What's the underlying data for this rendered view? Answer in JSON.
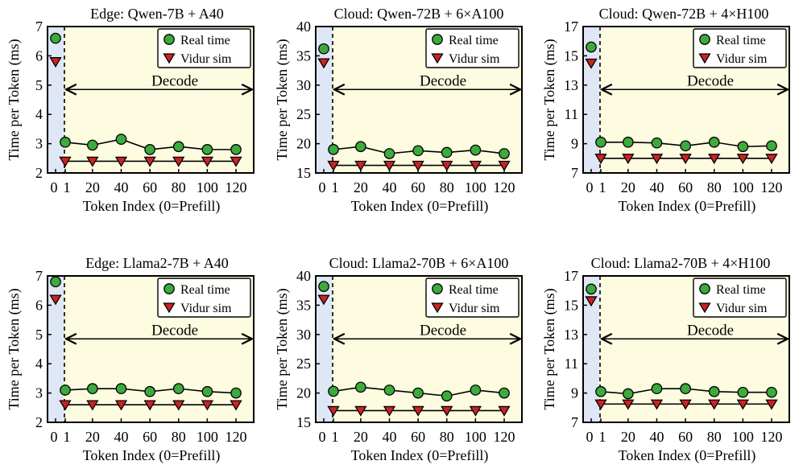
{
  "colors": {
    "plot_bg": "#fdfbe0",
    "prefill_bg": "#dfe6f6",
    "real": "#3caa3c",
    "sim": "#cc2222",
    "line": "#000000"
  },
  "chart_data": [
    {
      "type": "line",
      "title": "Edge: Qwen-7B + A40",
      "xlabel": "Token Index (0=Prefill)",
      "ylabel": "Time per Token (ms)",
      "x_ticks": [
        "0",
        "1",
        "20",
        "40",
        "60",
        "80",
        "100",
        "120"
      ],
      "ylim": [
        2,
        7
      ],
      "y_ticks": [
        2,
        3,
        4,
        5,
        6,
        7
      ],
      "annotation": "Decode",
      "prefill": {
        "real": 6.6,
        "sim": 5.8
      },
      "decode_x": [
        1,
        20,
        40,
        60,
        80,
        100,
        120
      ],
      "series": [
        {
          "name": "Real time",
          "values": [
            3.05,
            2.95,
            3.15,
            2.8,
            2.9,
            2.8,
            2.8
          ]
        },
        {
          "name": "Vidur sim",
          "values": [
            2.4,
            2.4,
            2.4,
            2.4,
            2.4,
            2.4,
            2.4
          ]
        }
      ]
    },
    {
      "type": "line",
      "title": "Cloud: Qwen-72B + 6×A100",
      "xlabel": "Token Index (0=Prefill)",
      "ylabel": "Time per Token (ms)",
      "x_ticks": [
        "0",
        "1",
        "20",
        "40",
        "60",
        "80",
        "100",
        "120"
      ],
      "ylim": [
        15,
        40
      ],
      "y_ticks": [
        15,
        20,
        25,
        30,
        35,
        40
      ],
      "annotation": "Decode",
      "prefill": {
        "real": 36.2,
        "sim": 33.8
      },
      "decode_x": [
        1,
        20,
        40,
        60,
        80,
        100,
        120
      ],
      "series": [
        {
          "name": "Real time",
          "values": [
            19.0,
            19.5,
            18.3,
            18.8,
            18.5,
            18.9,
            18.3
          ]
        },
        {
          "name": "Vidur sim",
          "values": [
            16.3,
            16.3,
            16.3,
            16.3,
            16.3,
            16.3,
            16.3
          ]
        }
      ]
    },
    {
      "type": "line",
      "title": "Cloud: Qwen-72B + 4×H100",
      "xlabel": "Token Index (0=Prefill)",
      "ylabel": "Time per Token (ms)",
      "x_ticks": [
        "0",
        "1",
        "20",
        "40",
        "60",
        "80",
        "100",
        "120"
      ],
      "ylim": [
        7,
        17
      ],
      "y_ticks": [
        7,
        9,
        11,
        13,
        15,
        17
      ],
      "annotation": "Decode",
      "prefill": {
        "real": 15.6,
        "sim": 14.5
      },
      "decode_x": [
        1,
        20,
        40,
        60,
        80,
        100,
        120
      ],
      "series": [
        {
          "name": "Real time",
          "values": [
            9.1,
            9.1,
            9.05,
            8.85,
            9.1,
            8.8,
            8.85
          ]
        },
        {
          "name": "Vidur sim",
          "values": [
            8.0,
            8.0,
            8.0,
            8.0,
            8.0,
            8.0,
            8.0
          ]
        }
      ]
    },
    {
      "type": "line",
      "title": "Edge: Llama2-7B + A40",
      "xlabel": "Token Index (0=Prefill)",
      "ylabel": "Time per Token (ms)",
      "x_ticks": [
        "0",
        "1",
        "20",
        "40",
        "60",
        "80",
        "100",
        "120"
      ],
      "ylim": [
        2,
        7
      ],
      "y_ticks": [
        2,
        3,
        4,
        5,
        6,
        7
      ],
      "annotation": "Decode",
      "prefill": {
        "real": 6.8,
        "sim": 6.2
      },
      "decode_x": [
        1,
        20,
        40,
        60,
        80,
        100,
        120
      ],
      "series": [
        {
          "name": "Real time",
          "values": [
            3.1,
            3.15,
            3.15,
            3.05,
            3.15,
            3.05,
            3.0
          ]
        },
        {
          "name": "Vidur sim",
          "values": [
            2.6,
            2.6,
            2.6,
            2.6,
            2.6,
            2.6,
            2.6
          ]
        }
      ]
    },
    {
      "type": "line",
      "title": "Cloud: Llama2-70B + 6×A100",
      "xlabel": "Token Index (0=Prefill)",
      "ylabel": "Time per Token (ms)",
      "x_ticks": [
        "0",
        "1",
        "20",
        "40",
        "60",
        "80",
        "100",
        "120"
      ],
      "ylim": [
        15,
        40
      ],
      "y_ticks": [
        15,
        20,
        25,
        30,
        35,
        40
      ],
      "annotation": "Decode",
      "prefill": {
        "real": 38.2,
        "sim": 36.0
      },
      "decode_x": [
        1,
        20,
        40,
        60,
        80,
        100,
        120
      ],
      "series": [
        {
          "name": "Real time",
          "values": [
            20.3,
            21.0,
            20.5,
            20.0,
            19.5,
            20.5,
            20.0
          ]
        },
        {
          "name": "Vidur sim",
          "values": [
            17.0,
            17.0,
            17.0,
            17.0,
            17.0,
            17.0,
            17.0
          ]
        }
      ]
    },
    {
      "type": "line",
      "title": "Cloud: Llama2-70B + 4×H100",
      "xlabel": "Token Index (0=Prefill)",
      "ylabel": "Time per Token (ms)",
      "x_ticks": [
        "0",
        "1",
        "20",
        "40",
        "60",
        "80",
        "100",
        "120"
      ],
      "ylim": [
        7,
        17
      ],
      "y_ticks": [
        7,
        9,
        11,
        13,
        15,
        17
      ],
      "annotation": "Decode",
      "prefill": {
        "real": 16.1,
        "sim": 15.3
      },
      "decode_x": [
        1,
        20,
        40,
        60,
        80,
        100,
        120
      ],
      "series": [
        {
          "name": "Real time",
          "values": [
            9.1,
            8.95,
            9.3,
            9.3,
            9.1,
            9.05,
            9.05
          ]
        },
        {
          "name": "Vidur sim",
          "values": [
            8.25,
            8.25,
            8.25,
            8.25,
            8.25,
            8.25,
            8.25
          ]
        }
      ]
    }
  ]
}
